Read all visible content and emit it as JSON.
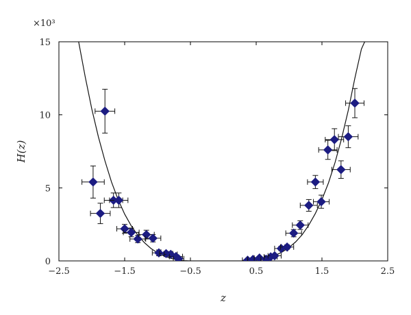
{
  "chart_data": {
    "type": "scatter",
    "title": "",
    "xlabel": "z",
    "ylabel": "H(z)",
    "y_multiplier": "×10³",
    "xlim": [
      -2.5,
      2.5
    ],
    "ylim": [
      0,
      15
    ],
    "x_ticks": [
      -2.5,
      -1.5,
      -0.5,
      0.5,
      1.5,
      2.5
    ],
    "x_tick_labels": [
      "−2.5",
      "−1.5",
      "−0.5",
      "0.5",
      "1.5",
      "2.5"
    ],
    "y_ticks": [
      0,
      5,
      10,
      15
    ],
    "y_tick_labels": [
      "0",
      "5",
      "10",
      "15"
    ],
    "grid": false,
    "series": [
      {
        "marker": "diamond",
        "color": "#1c1c82",
        "points": [
          {
            "x": -1.98,
            "y": 5.4,
            "xerr": 0.17,
            "yerr": 1.1
          },
          {
            "x": -1.87,
            "y": 3.25,
            "xerr": 0.15,
            "yerr": 0.7
          },
          {
            "x": -1.8,
            "y": 10.25,
            "xerr": 0.15,
            "yerr": 1.5
          },
          {
            "x": -1.67,
            "y": 4.15,
            "xerr": 0.14,
            "yerr": 0.5
          },
          {
            "x": -1.59,
            "y": 4.15,
            "xerr": 0.14,
            "yerr": 0.5
          },
          {
            "x": -1.5,
            "y": 2.2,
            "xerr": 0.12,
            "yerr": 0.3
          },
          {
            "x": -1.4,
            "y": 1.95,
            "xerr": 0.12,
            "yerr": 0.3
          },
          {
            "x": -1.3,
            "y": 1.5,
            "xerr": 0.12,
            "yerr": 0.25
          },
          {
            "x": -1.17,
            "y": 1.8,
            "xerr": 0.12,
            "yerr": 0.3
          },
          {
            "x": -1.07,
            "y": 1.55,
            "xerr": 0.12,
            "yerr": 0.25
          },
          {
            "x": -0.98,
            "y": 0.55,
            "xerr": 0.1,
            "yerr": 0.2
          },
          {
            "x": -0.87,
            "y": 0.5,
            "xerr": 0.1,
            "yerr": 0.15
          },
          {
            "x": -0.8,
            "y": 0.45,
            "xerr": 0.1,
            "yerr": 0.15
          },
          {
            "x": -0.72,
            "y": 0.3,
            "xerr": 0.1,
            "yerr": 0.1
          },
          {
            "x": -0.68,
            "y": 0.15,
            "xerr": 0.08,
            "yerr": 0.1
          },
          {
            "x": 0.37,
            "y": 0.05,
            "xerr": 0.08,
            "yerr": 0.1
          },
          {
            "x": 0.45,
            "y": 0.1,
            "xerr": 0.08,
            "yerr": 0.1
          },
          {
            "x": 0.55,
            "y": 0.2,
            "xerr": 0.08,
            "yerr": 0.1
          },
          {
            "x": 0.65,
            "y": 0.12,
            "xerr": 0.08,
            "yerr": 0.1
          },
          {
            "x": 0.72,
            "y": 0.28,
            "xerr": 0.1,
            "yerr": 0.1
          },
          {
            "x": 0.78,
            "y": 0.35,
            "xerr": 0.1,
            "yerr": 0.12
          },
          {
            "x": 0.88,
            "y": 0.85,
            "xerr": 0.1,
            "yerr": 0.15
          },
          {
            "x": 0.97,
            "y": 0.95,
            "xerr": 0.1,
            "yerr": 0.15
          },
          {
            "x": 1.07,
            "y": 1.9,
            "xerr": 0.12,
            "yerr": 0.25
          },
          {
            "x": 1.17,
            "y": 2.45,
            "xerr": 0.12,
            "yerr": 0.3
          },
          {
            "x": 1.3,
            "y": 3.8,
            "xerr": 0.13,
            "yerr": 0.4
          },
          {
            "x": 1.4,
            "y": 5.4,
            "xerr": 0.12,
            "yerr": 0.45
          },
          {
            "x": 1.49,
            "y": 4.05,
            "xerr": 0.12,
            "yerr": 0.45
          },
          {
            "x": 1.59,
            "y": 7.6,
            "xerr": 0.14,
            "yerr": 0.65
          },
          {
            "x": 1.69,
            "y": 8.3,
            "xerr": 0.14,
            "yerr": 0.75
          },
          {
            "x": 1.79,
            "y": 6.25,
            "xerr": 0.14,
            "yerr": 0.6
          },
          {
            "x": 1.9,
            "y": 8.5,
            "xerr": 0.15,
            "yerr": 0.75
          },
          {
            "x": 2.0,
            "y": 10.8,
            "xerr": 0.14,
            "yerr": 1.0
          }
        ]
      }
    ],
    "fit_curve": {
      "color": "#111111",
      "points": [
        {
          "x": -2.2,
          "y": 15.0
        },
        {
          "x": -2.1,
          "y": 12.6
        },
        {
          "x": -2.0,
          "y": 10.4
        },
        {
          "x": -1.9,
          "y": 8.5
        },
        {
          "x": -1.8,
          "y": 6.85
        },
        {
          "x": -1.7,
          "y": 5.4
        },
        {
          "x": -1.6,
          "y": 4.2
        },
        {
          "x": -1.5,
          "y": 3.2
        },
        {
          "x": -1.4,
          "y": 2.4
        },
        {
          "x": -1.3,
          "y": 1.75
        },
        {
          "x": -1.2,
          "y": 1.25
        },
        {
          "x": -1.1,
          "y": 0.85
        },
        {
          "x": -1.0,
          "y": 0.55
        },
        {
          "x": -0.9,
          "y": 0.33
        },
        {
          "x": -0.8,
          "y": 0.18
        },
        {
          "x": -0.7,
          "y": 0.08
        },
        {
          "x": -0.6,
          "y": 0.02
        },
        {
          "x": -0.5,
          "y": 0.0
        },
        {
          "x": 0.3,
          "y": 0.0
        },
        {
          "x": 0.4,
          "y": 0.02
        },
        {
          "x": 0.5,
          "y": 0.06
        },
        {
          "x": 0.6,
          "y": 0.13
        },
        {
          "x": 0.7,
          "y": 0.24
        },
        {
          "x": 0.8,
          "y": 0.4
        },
        {
          "x": 0.9,
          "y": 0.62
        },
        {
          "x": 1.0,
          "y": 0.92
        },
        {
          "x": 1.1,
          "y": 1.3
        },
        {
          "x": 1.2,
          "y": 1.8
        },
        {
          "x": 1.3,
          "y": 2.45
        },
        {
          "x": 1.4,
          "y": 3.25
        },
        {
          "x": 1.5,
          "y": 4.2
        },
        {
          "x": 1.6,
          "y": 5.35
        },
        {
          "x": 1.7,
          "y": 6.75
        },
        {
          "x": 1.8,
          "y": 8.4
        },
        {
          "x": 1.9,
          "y": 10.3
        },
        {
          "x": 2.0,
          "y": 12.5
        },
        {
          "x": 2.1,
          "y": 14.5
        },
        {
          "x": 2.15,
          "y": 15.0
        }
      ]
    }
  }
}
